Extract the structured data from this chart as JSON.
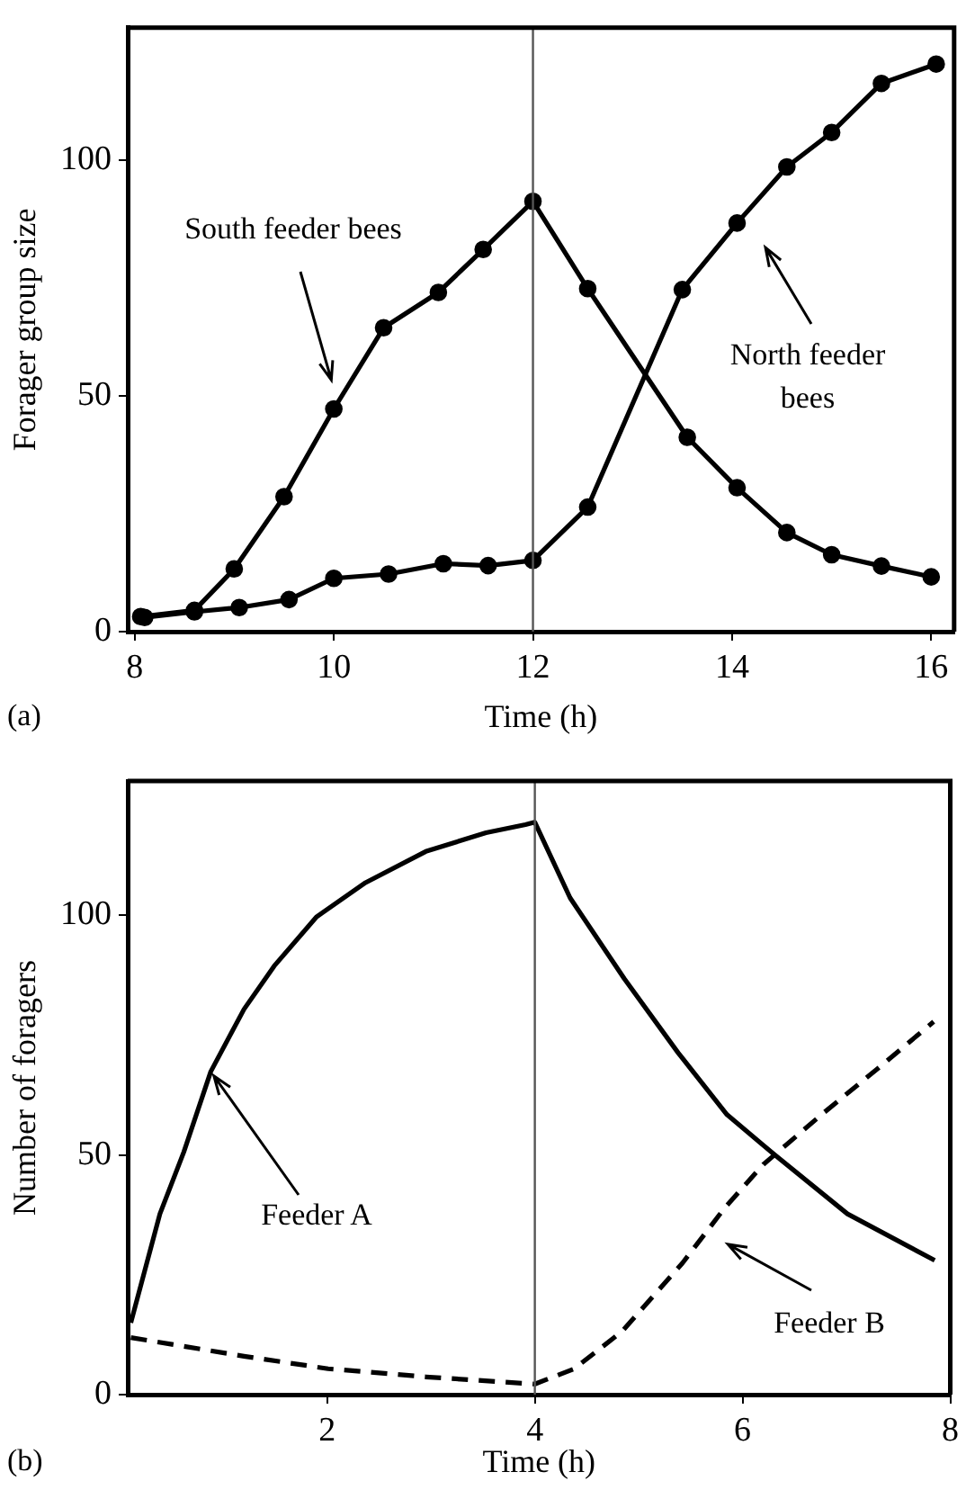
{
  "chart_data": [
    {
      "type": "line",
      "xlabel": "Time (h)",
      "ylabel": "Forager group size",
      "xlim": [
        7.93,
        16.23
      ],
      "ylim": [
        0,
        128
      ],
      "xticks": [
        8,
        10,
        12,
        14,
        16
      ],
      "yticks": [
        0,
        50,
        100
      ],
      "grid": false,
      "legend": false,
      "marker": "circle",
      "line_style": "solid",
      "series": [
        {
          "color": "#000000",
          "x": [
            8.06,
            8.6,
            9.0,
            9.5,
            10.0,
            10.5,
            11.05,
            11.5,
            12.0,
            12.55,
            13.55,
            14.05,
            14.55,
            15.0,
            15.5,
            16.0
          ],
          "values": [
            3.2,
            4.5,
            13.3,
            28.6,
            47.2,
            64.4,
            71.9,
            81,
            91.2,
            72.7,
            41.2,
            30.5,
            21,
            16.3,
            13.9,
            11.6
          ]
        },
        {
          "color": "#000000",
          "x": [
            8.1,
            8.6,
            9.05,
            9.55,
            10.0,
            10.55,
            11.1,
            11.55,
            12.0,
            12.55,
            13.5,
            14.05,
            14.55,
            15.0,
            15.5,
            16.05
          ],
          "values": [
            3,
            4.2,
            5.1,
            6.8,
            11.3,
            12.2,
            14.4,
            14,
            15.1,
            26.4,
            72.5,
            86.6,
            98.5,
            105.8,
            116.2,
            120.3
          ]
        }
      ],
      "ref_lines": [
        {
          "axis": "x",
          "value": 12,
          "color": "#555555"
        }
      ],
      "annotations": [
        "(a)",
        "South feeder bees",
        "North feeder bees"
      ]
    },
    {
      "type": "line",
      "xlabel": "Time (h)",
      "ylabel": "Number of foragers",
      "xlim": [
        0.08,
        8
      ],
      "ylim": [
        0,
        128
      ],
      "xticks": [
        2,
        4,
        6,
        8
      ],
      "yticks": [
        0,
        50,
        100
      ],
      "grid": false,
      "legend": false,
      "marker": "none",
      "series": [
        {
          "color": "#000000",
          "line_style": "solid",
          "x": [
            0.11,
            0.39,
            0.62,
            0.88,
            1.2,
            1.49,
            1.9,
            2.37,
            2.95,
            3.53,
            3.91,
            4.0,
            4.34,
            4.86,
            5.38,
            5.85,
            6.31,
            7.01,
            7.85
          ],
          "values": [
            15,
            37.7,
            50.6,
            67.4,
            80.4,
            89.4,
            99.7,
            106.8,
            113.3,
            117.2,
            118.9,
            119.4,
            103.6,
            86.8,
            71.3,
            58.4,
            50,
            37.7,
            28
          ]
        },
        {
          "color": "#000000",
          "line_style": "dashed",
          "x": [
            0.11,
            1.2,
            2.01,
            2.95,
            4.0,
            4.38,
            4.84,
            5.42,
            5.83,
            6.2,
            6.76,
            7.34,
            7.84
          ],
          "values": [
            11.9,
            8,
            5.4,
            3.7,
            2.2,
            5.4,
            13.2,
            27.4,
            39,
            48,
            58.4,
            68.7,
            77.8
          ]
        }
      ],
      "ref_lines": [
        {
          "axis": "x",
          "value": 4,
          "color": "#555555"
        }
      ],
      "annotations": [
        "(b)",
        {
          "text": "Feeder A",
          "x": 0.88,
          "y": 67.4
        },
        "Feeder B"
      ]
    }
  ]
}
